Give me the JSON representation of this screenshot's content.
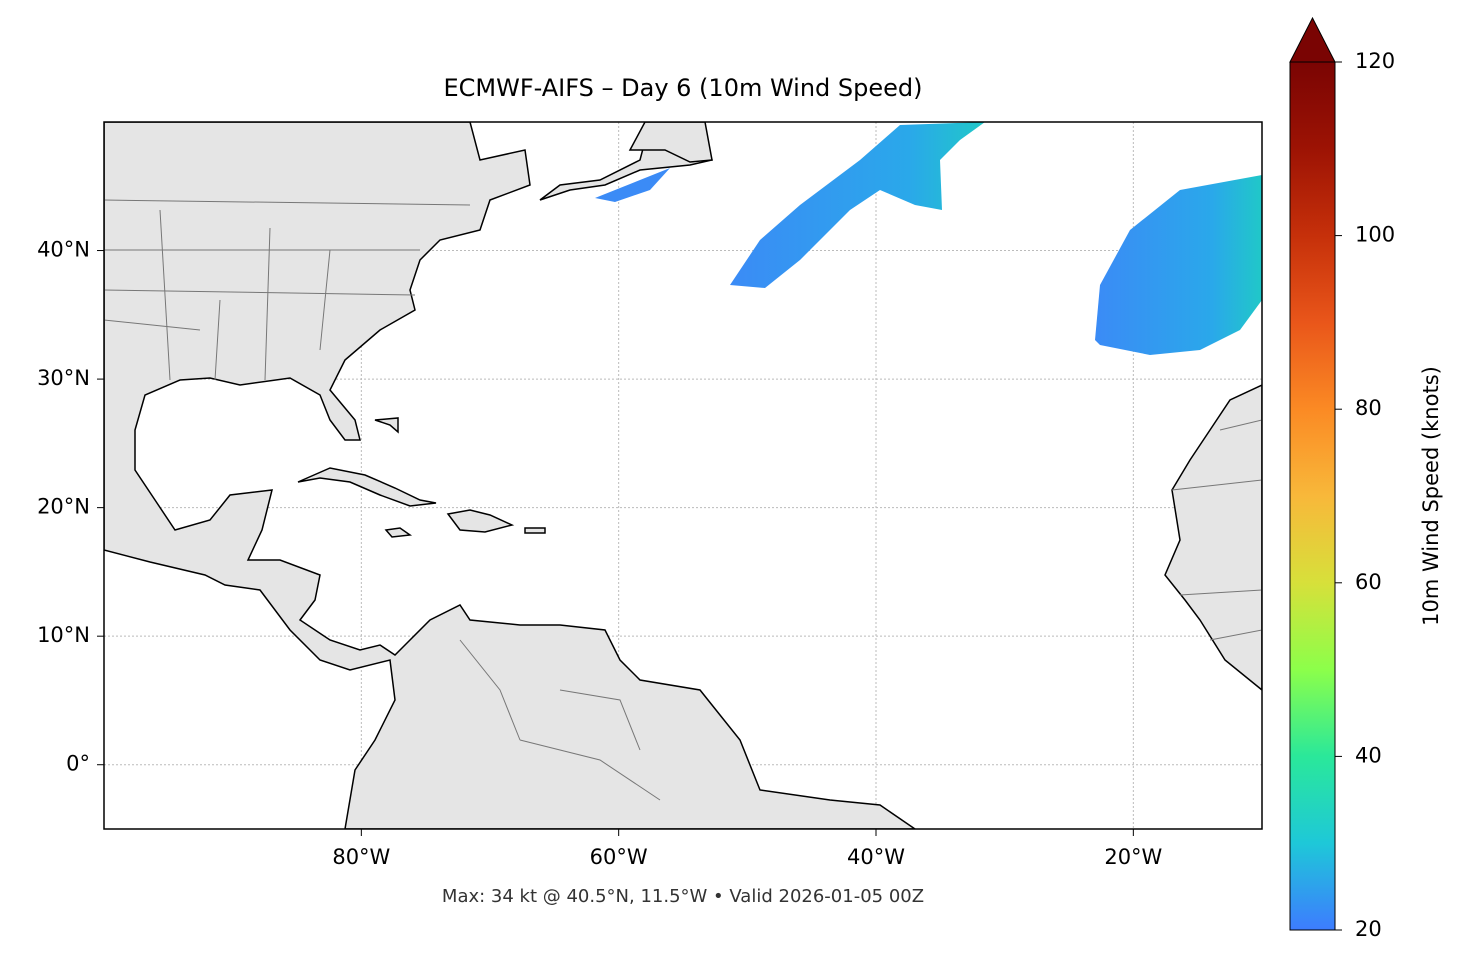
{
  "chart_data": {
    "type": "map",
    "title": "ECMWF-AIFS – Day 6 (10m Wind Speed)",
    "footer": "Max: 34 kt @ 40.5°N, 11.5°W • Valid 2026-01-05 00Z",
    "xlim": [
      -100,
      -10
    ],
    "ylim": [
      -5,
      50
    ],
    "xticks": [
      {
        "value": -80,
        "label": "80°W"
      },
      {
        "value": -60,
        "label": "60°W"
      },
      {
        "value": -40,
        "label": "40°W"
      },
      {
        "value": -20,
        "label": "20°W"
      }
    ],
    "yticks": [
      {
        "value": 0,
        "label": "0°"
      },
      {
        "value": 10,
        "label": "10°N"
      },
      {
        "value": 20,
        "label": "20°N"
      },
      {
        "value": 30,
        "label": "30°N"
      },
      {
        "value": 40,
        "label": "40°N"
      }
    ],
    "grid": true,
    "colorbar": {
      "label": "10m Wind Speed (knots)",
      "clim": [
        20,
        120
      ],
      "ticks": [
        20,
        40,
        60,
        80,
        100,
        120
      ],
      "extend": "max",
      "colors": [
        "#3d7cff",
        "#1ec8d8",
        "#2ae89a",
        "#8cff4a",
        "#d7e03a",
        "#f8b83a",
        "#fb8a24",
        "#e9561a",
        "#c6300a",
        "#9d1304",
        "#7a0403"
      ]
    }
  }
}
